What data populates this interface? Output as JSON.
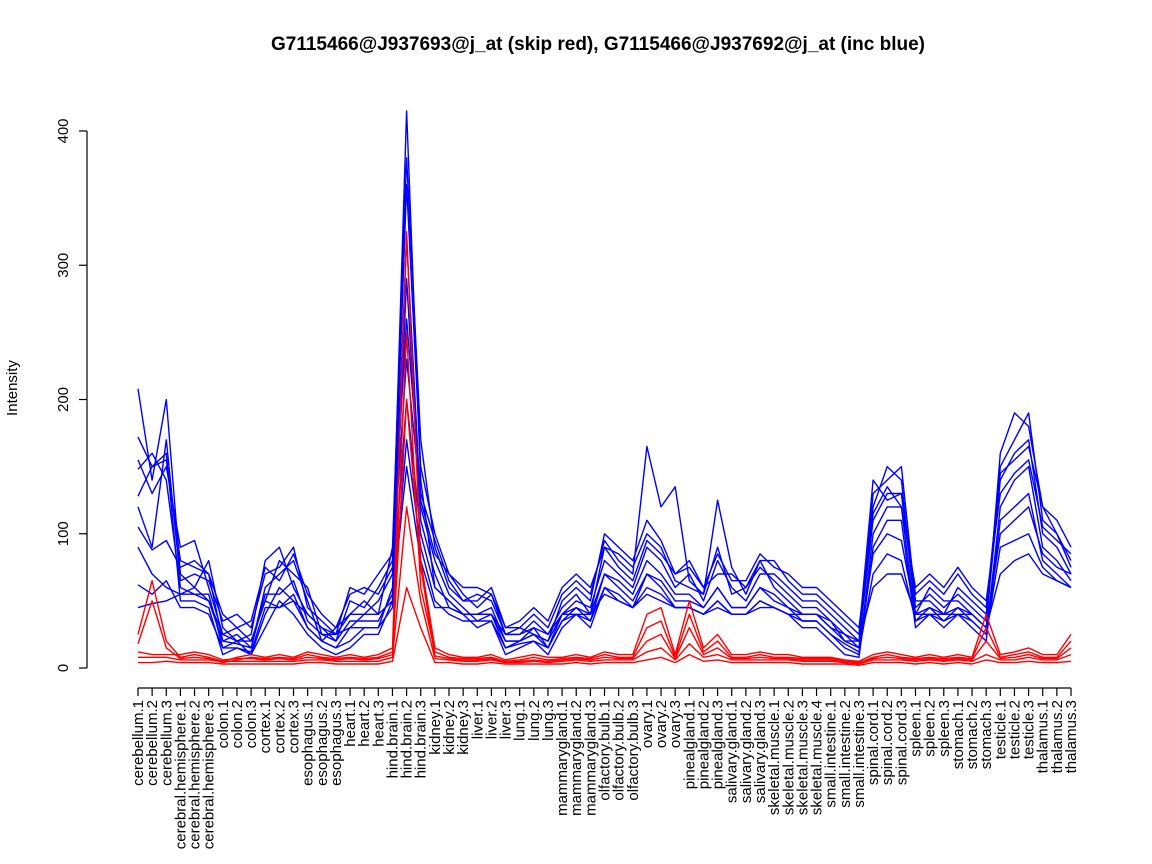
{
  "chart_data": {
    "type": "line",
    "title": "G7115466@J937693@j_at (skip red), G7115466@J937692@j_at (inc blue)",
    "xlabel": "",
    "ylabel": "Intensity",
    "ylim": [
      0,
      420
    ],
    "yticks": [
      0,
      100,
      200,
      300,
      400
    ],
    "grid": false,
    "colors": {
      "skip": "#ff0000",
      "inc": "#0000ff"
    },
    "categories": [
      "cerebellum.1",
      "cerebellum.2",
      "cerebellum.3",
      "cerebral.hemisphere.1",
      "cerebral.hemisphere.2",
      "cerebral.hemisphere.3",
      "colon.1",
      "colon.2",
      "colon.3",
      "cortex.1",
      "cortex.2",
      "cortex.3",
      "esophagus.1",
      "esophagus.2",
      "esophagus.3",
      "heart.1",
      "heart.2",
      "heart.3",
      "hind.brain.1",
      "hind.brain.2",
      "hind.brain.3",
      "kidney.1",
      "kidney.2",
      "kidney.3",
      "liver.1",
      "liver.2",
      "liver.3",
      "lung.1",
      "lung.2",
      "lung.3",
      "mammarygland.1",
      "mammarygland.2",
      "mammarygland.3",
      "olfactory.bulb.1",
      "olfactory.bulb.2",
      "olfactory.bulb.3",
      "ovary.1",
      "ovary.2",
      "ovary.3",
      "pinealgland.1",
      "pinealgland.2",
      "pinealgland.3",
      "salivary.gland.1",
      "salivary.gland.2",
      "salivary.gland.3",
      "skeletal.muscle.1",
      "skeletal.muscle.2",
      "skeletal.muscle.3",
      "skeletal.muscle.4",
      "small.intestine.1",
      "small.intestine.2",
      "small.intestine.3",
      "spinal.cord.1",
      "spinal.cord.2",
      "spinal.cord.3",
      "spleen.1",
      "spleen.2",
      "spleen.3",
      "stomach.1",
      "stomach.2",
      "stomach.3",
      "testicle.1",
      "testicle.2",
      "testicle.3",
      "thalamus.1",
      "thalamus.2",
      "thalamus.3"
    ],
    "series": [
      {
        "group": "inc",
        "values": [
          208,
          140,
          200,
          70,
          60,
          80,
          30,
          20,
          25,
          80,
          90,
          60,
          40,
          30,
          20,
          50,
          45,
          60,
          80,
          415,
          140,
          60,
          50,
          40,
          40,
          45,
          20,
          20,
          30,
          15,
          40,
          50,
          45,
          80,
          70,
          60,
          90,
          80,
          60,
          70,
          50,
          80,
          60,
          50,
          70,
          70,
          60,
          50,
          50,
          40,
          30,
          20,
          120,
          150,
          140,
          40,
          60,
          50,
          50,
          40,
          30,
          160,
          190,
          180,
          120,
          110,
          90
        ]
      },
      {
        "group": "inc",
        "values": [
          172,
          150,
          155,
          80,
          75,
          70,
          20,
          25,
          15,
          60,
          70,
          80,
          50,
          20,
          30,
          40,
          50,
          40,
          90,
          380,
          170,
          90,
          60,
          50,
          50,
          60,
          30,
          30,
          25,
          20,
          50,
          60,
          50,
          100,
          90,
          80,
          110,
          95,
          70,
          80,
          60,
          70,
          70,
          60,
          80,
          60,
          50,
          40,
          40,
          30,
          25,
          15,
          130,
          140,
          150,
          50,
          50,
          40,
          60,
          50,
          40,
          150,
          170,
          190,
          110,
          100,
          80
        ]
      },
      {
        "group": "inc",
        "values": [
          155,
          130,
          150,
          90,
          95,
          60,
          25,
          30,
          20,
          50,
          80,
          70,
          60,
          25,
          25,
          30,
          40,
          50,
          70,
          360,
          150,
          100,
          70,
          55,
          45,
          55,
          25,
          25,
          35,
          25,
          45,
          55,
          40,
          90,
          85,
          75,
          100,
          90,
          65,
          60,
          55,
          90,
          55,
          60,
          75,
          65,
          55,
          45,
          45,
          35,
          20,
          20,
          110,
          130,
          130,
          45,
          55,
          45,
          55,
          45,
          35,
          140,
          160,
          170,
          100,
          90,
          70
        ]
      },
      {
        "group": "inc",
        "values": [
          148,
          160,
          140,
          60,
          55,
          55,
          15,
          20,
          10,
          40,
          60,
          50,
          30,
          20,
          15,
          20,
          30,
          30,
          60,
          320,
          120,
          80,
          55,
          45,
          35,
          40,
          15,
          20,
          25,
          15,
          35,
          45,
          35,
          70,
          65,
          55,
          80,
          70,
          55,
          55,
          45,
          60,
          45,
          45,
          60,
          55,
          45,
          35,
          35,
          25,
          15,
          10,
          100,
          120,
          120,
          35,
          45,
          35,
          45,
          35,
          25,
          120,
          140,
          150,
          90,
          80,
          65
        ]
      },
      {
        "group": "inc",
        "values": [
          128,
          150,
          160,
          50,
          50,
          45,
          10,
          15,
          10,
          30,
          50,
          40,
          25,
          15,
          10,
          15,
          25,
          25,
          50,
          290,
          110,
          70,
          45,
          40,
          30,
          35,
          10,
          15,
          20,
          10,
          30,
          40,
          30,
          60,
          55,
          45,
          70,
          60,
          45,
          45,
          40,
          50,
          40,
          40,
          50,
          45,
          40,
          30,
          30,
          20,
          10,
          8,
          90,
          110,
          110,
          30,
          40,
          30,
          40,
          30,
          20,
          110,
          120,
          130,
          80,
          70,
          60
        ]
      },
      {
        "group": "inc",
        "values": [
          120,
          90,
          170,
          65,
          70,
          65,
          35,
          40,
          30,
          70,
          75,
          90,
          45,
          35,
          25,
          60,
          55,
          70,
          85,
          260,
          130,
          95,
          65,
          50,
          55,
          50,
          25,
          30,
          40,
          30,
          55,
          65,
          55,
          95,
          80,
          70,
          165,
          120,
          135,
          65,
          55,
          125,
          75,
          55,
          80,
          80,
          65,
          55,
          55,
          45,
          35,
          25,
          140,
          125,
          130,
          55,
          65,
          55,
          70,
          55,
          45,
          145,
          155,
          165,
          120,
          100,
          75
        ]
      },
      {
        "group": "inc",
        "values": [
          105,
          88,
          95,
          75,
          80,
          70,
          40,
          30,
          35,
          75,
          65,
          85,
          55,
          40,
          30,
          55,
          60,
          55,
          75,
          230,
          125,
          85,
          70,
          60,
          60,
          55,
          30,
          35,
          45,
          35,
          60,
          70,
          60,
          90,
          75,
          65,
          95,
          85,
          70,
          75,
          60,
          85,
          65,
          65,
          85,
          75,
          70,
          60,
          60,
          50,
          40,
          30,
          115,
          135,
          120,
          60,
          70,
          60,
          75,
          60,
          50,
          130,
          145,
          155,
          105,
          95,
          85
        ]
      },
      {
        "group": "inc",
        "values": [
          90,
          70,
          60,
          55,
          55,
          50,
          20,
          18,
          15,
          55,
          55,
          65,
          35,
          25,
          20,
          35,
          35,
          35,
          55,
          200,
          100,
          60,
          50,
          40,
          40,
          40,
          20,
          20,
          25,
          20,
          40,
          45,
          40,
          70,
          60,
          50,
          70,
          65,
          50,
          50,
          45,
          60,
          45,
          45,
          60,
          50,
          45,
          40,
          40,
          30,
          20,
          15,
          85,
          100,
          95,
          40,
          45,
          40,
          45,
          40,
          30,
          100,
          110,
          120,
          85,
          75,
          70
        ]
      },
      {
        "group": "inc",
        "values": [
          62,
          55,
          65,
          45,
          45,
          40,
          15,
          15,
          12,
          45,
          45,
          55,
          30,
          20,
          15,
          30,
          30,
          30,
          45,
          170,
          90,
          50,
          40,
          35,
          35,
          35,
          15,
          18,
          20,
          15,
          35,
          40,
          35,
          60,
          50,
          45,
          60,
          55,
          45,
          45,
          40,
          50,
          40,
          40,
          50,
          45,
          40,
          35,
          35,
          25,
          18,
          12,
          70,
          85,
          80,
          35,
          40,
          35,
          40,
          35,
          25,
          90,
          95,
          100,
          75,
          65,
          60
        ]
      },
      {
        "group": "inc",
        "values": [
          45,
          48,
          50,
          55,
          60,
          50,
          25,
          20,
          20,
          50,
          45,
          50,
          40,
          30,
          25,
          40,
          40,
          40,
          50,
          150,
          80,
          45,
          45,
          40,
          40,
          40,
          25,
          25,
          30,
          25,
          40,
          40,
          40,
          55,
          50,
          45,
          55,
          50,
          45,
          45,
          40,
          45,
          40,
          40,
          45,
          45,
          40,
          40,
          40,
          35,
          25,
          20,
          60,
          70,
          70,
          40,
          40,
          40,
          40,
          40,
          30,
          70,
          80,
          85,
          70,
          65,
          60
        ]
      },
      {
        "group": "skip",
        "values": [
          25,
          65,
          20,
          8,
          10,
          8,
          5,
          8,
          10,
          8,
          10,
          8,
          12,
          10,
          8,
          10,
          8,
          10,
          15,
          325,
          80,
          15,
          10,
          8,
          8,
          10,
          6,
          8,
          10,
          8,
          8,
          10,
          8,
          12,
          10,
          10,
          40,
          45,
          10,
          50,
          15,
          25,
          10,
          10,
          12,
          10,
          10,
          8,
          8,
          8,
          6,
          5,
          10,
          12,
          10,
          8,
          10,
          8,
          10,
          8,
          40,
          10,
          12,
          15,
          10,
          10,
          25
        ]
      },
      {
        "group": "skip",
        "values": [
          18,
          50,
          15,
          7,
          8,
          7,
          4,
          6,
          8,
          7,
          8,
          7,
          10,
          8,
          7,
          8,
          7,
          8,
          12,
          250,
          60,
          12,
          8,
          7,
          7,
          8,
          5,
          6,
          8,
          6,
          7,
          8,
          7,
          10,
          8,
          8,
          30,
          35,
          8,
          40,
          12,
          20,
          8,
          8,
          10,
          8,
          8,
          7,
          7,
          7,
          5,
          4,
          8,
          10,
          8,
          7,
          8,
          7,
          8,
          7,
          30,
          8,
          10,
          12,
          8,
          8,
          20
        ]
      },
      {
        "group": "skip",
        "values": [
          12,
          10,
          10,
          10,
          12,
          10,
          6,
          7,
          7,
          6,
          7,
          6,
          8,
          7,
          6,
          7,
          6,
          7,
          10,
          200,
          75,
          9,
          7,
          6,
          6,
          7,
          4,
          5,
          6,
          5,
          6,
          7,
          6,
          8,
          7,
          7,
          20,
          25,
          7,
          30,
          10,
          15,
          7,
          7,
          8,
          7,
          7,
          6,
          6,
          6,
          4,
          4,
          7,
          8,
          7,
          6,
          7,
          6,
          7,
          6,
          20,
          7,
          8,
          10,
          7,
          7,
          15
        ]
      },
      {
        "group": "skip",
        "values": [
          8,
          8,
          8,
          6,
          6,
          6,
          5,
          5,
          5,
          5,
          5,
          5,
          6,
          6,
          5,
          5,
          5,
          5,
          8,
          120,
          50,
          7,
          6,
          5,
          5,
          6,
          4,
          4,
          5,
          4,
          5,
          6,
          5,
          6,
          6,
          6,
          12,
          15,
          6,
          18,
          8,
          10,
          6,
          6,
          6,
          6,
          6,
          5,
          5,
          5,
          4,
          3,
          6,
          6,
          6,
          5,
          6,
          5,
          6,
          5,
          10,
          6,
          6,
          8,
          6,
          6,
          10
        ]
      },
      {
        "group": "skip",
        "values": [
          4,
          4,
          5,
          4,
          4,
          4,
          3,
          3,
          3,
          3,
          3,
          3,
          4,
          4,
          3,
          3,
          3,
          3,
          5,
          60,
          30,
          4,
          4,
          3,
          3,
          4,
          3,
          3,
          3,
          3,
          3,
          4,
          3,
          4,
          4,
          4,
          6,
          8,
          4,
          10,
          5,
          6,
          4,
          4,
          4,
          4,
          4,
          3,
          3,
          3,
          3,
          2,
          4,
          4,
          4,
          3,
          4,
          3,
          4,
          3,
          6,
          4,
          4,
          5,
          4,
          4,
          5
        ]
      }
    ]
  }
}
